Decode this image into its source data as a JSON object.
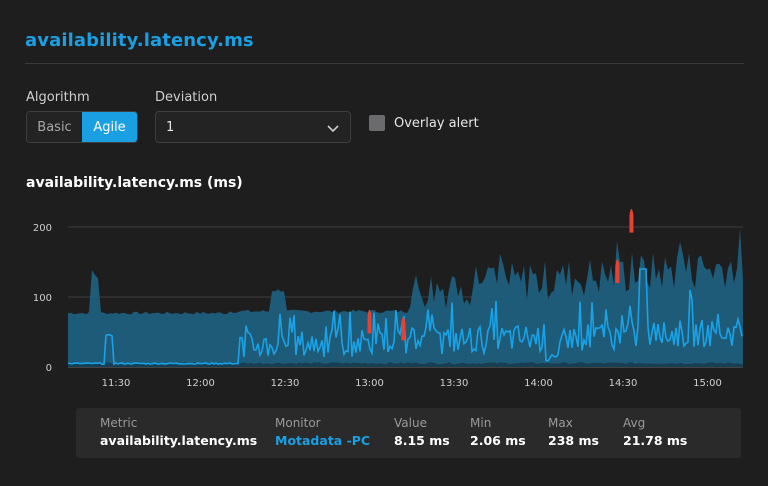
{
  "page_title": "availability.latency.ms",
  "algorithm": {
    "label": "Algorithm",
    "options": [
      "Basic",
      "Agile"
    ],
    "selected": "Agile"
  },
  "deviation": {
    "label": "Deviation",
    "value": "1"
  },
  "overlay_alert": {
    "label": "Overlay alert",
    "checked": false
  },
  "chart_title": "availability.latency.ms (ms)",
  "chart_data": {
    "type": "area",
    "y_ticks": [
      "0",
      "100",
      "200"
    ],
    "x_ticks": [
      "11:30",
      "12:00",
      "12:30",
      "13:00",
      "13:30",
      "14:00",
      "14:30",
      "15:00"
    ],
    "ylim": [
      0,
      230
    ],
    "colors": {
      "band": "#1e5f7e",
      "line": "#1aa2e6",
      "anomaly": "#e8412f"
    },
    "anomalies": [
      {
        "x": "13:00",
        "y": 88
      },
      {
        "x": "13:12",
        "y": 78
      },
      {
        "x": "14:28",
        "y": 160
      },
      {
        "x": "14:33",
        "y": 232
      }
    ]
  },
  "summary": {
    "metric_label": "Metric",
    "metric_value": "availability.latency.ms",
    "monitor_label": "Monitor",
    "monitor_value": "Motadata -PC",
    "value_label": "Value",
    "value_value": "8.15 ms",
    "min_label": "Min",
    "min_value": "2.06 ms",
    "max_label": "Max",
    "max_value": "238 ms",
    "avg_label": "Avg",
    "avg_value": "21.78 ms"
  }
}
